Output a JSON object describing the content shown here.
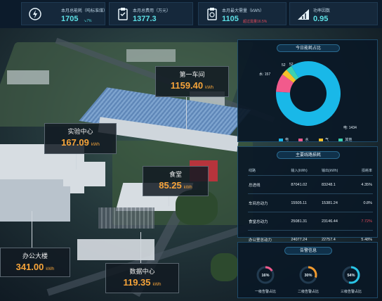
{
  "kpis": [
    {
      "label": "本月总能耗（吨标准煤）",
      "value": "1705",
      "sub": "↘7%",
      "sub_color": "#4fd7d7"
    },
    {
      "label": "本月总费用（万元）",
      "value": "1377.3",
      "sub": "",
      "sub_color": ""
    },
    {
      "label": "本月最大需量（kWh）",
      "value": "1105",
      "sub": "超过需量16.5%",
      "sub_color": "#e34a5a"
    },
    {
      "label": "功率因数",
      "value": "0.95",
      "sub": "",
      "sub_color": ""
    }
  ],
  "map_labels": {
    "workshop": {
      "name": "第一车间",
      "value": "1159.40",
      "unit": "kWh"
    },
    "lab": {
      "name": "实验中心",
      "value": "167.09",
      "unit": "kWh"
    },
    "canteen": {
      "name": "食堂",
      "value": "85.25",
      "unit": "kWh"
    },
    "office": {
      "name": "办公大楼",
      "value": "341.00",
      "unit": "kWh"
    },
    "datacenter": {
      "name": "数据中心",
      "value": "119.35",
      "unit": "kWh"
    }
  },
  "energy_panel": {
    "title": "今日能耗占比",
    "labels": {
      "elec": "电: 1434",
      "water": "水: 157",
      "gas": "52",
      "other": "52"
    },
    "legend": [
      "电",
      "水",
      "气",
      "其他"
    ],
    "colors": [
      "#19b8e8",
      "#f25a8c",
      "#f5c02b",
      "#3cd1b0"
    ]
  },
  "chart_data": {
    "type": "pie",
    "categories": [
      "电",
      "水",
      "气",
      "其他"
    ],
    "values": [
      1434,
      157,
      52,
      52
    ],
    "title": "今日能耗占比"
  },
  "line_panel": {
    "title": "主要线路损耗",
    "headers": [
      "线路",
      "输入(kWh)",
      "输出(kWh)",
      "损耗率"
    ],
    "rows": [
      [
        "总进线",
        "87041.02",
        "83248.1",
        "4.35%"
      ],
      [
        "车间总动力",
        "15505.11",
        "15381.24",
        "0.8%"
      ],
      [
        "食堂总动力",
        "25081.31",
        "23146.44",
        "7.72%"
      ],
      [
        "办公室总动力",
        "24077.24",
        "22757.4",
        "5.48%"
      ]
    ],
    "alert_color": "#e34a5a"
  },
  "alarm_panel": {
    "title": "告警信息",
    "gauges": [
      {
        "value": "16%",
        "label": "一级告警占比",
        "fraction": 0.16,
        "color": "#f25a8c"
      },
      {
        "value": "30%",
        "label": "二级告警占比",
        "fraction": 0.3,
        "color": "#f29a2e"
      },
      {
        "value": "54%",
        "label": "三级告警占比",
        "fraction": 0.54,
        "color": "#29c5e6"
      }
    ]
  }
}
